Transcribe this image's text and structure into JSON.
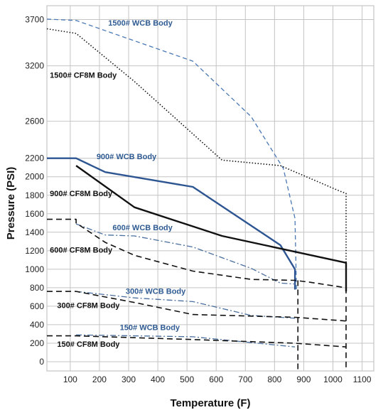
{
  "chart_data": {
    "type": "line",
    "title": "",
    "xlabel": "Temperature (F)",
    "ylabel": "Pressure (PSI)",
    "xlim": [
      20,
      1140
    ],
    "ylim": [
      -100,
      3850
    ],
    "grid": true,
    "x_ticks": [
      100,
      200,
      300,
      400,
      500,
      600,
      700,
      800,
      900,
      1000,
      1100
    ],
    "y_ticks": [
      0,
      200,
      400,
      600,
      800,
      1000,
      1200,
      1400,
      1600,
      1800,
      2000,
      2200,
      2600,
      3200,
      3700
    ],
    "series": [
      {
        "name": "1500# WCB Body",
        "label_at": [
          230,
          3635
        ],
        "label_color": "#2f5b93",
        "color": "#4a78b5",
        "dash": "6,4",
        "width": 1.3,
        "points": [
          [
            20,
            3705
          ],
          [
            120,
            3690
          ],
          [
            520,
            3250
          ],
          [
            720,
            2650
          ],
          [
            830,
            2090
          ],
          [
            870,
            1550
          ],
          [
            875,
            760
          ]
        ]
      },
      {
        "name": "1500# CF8M Body",
        "label_at": [
          30,
          3070
        ],
        "label_color": "#111111",
        "color": "#111111",
        "dash": "1.5,2.5",
        "width": 1.6,
        "points": [
          [
            20,
            3600
          ],
          [
            120,
            3550
          ],
          [
            320,
            3030
          ],
          [
            620,
            2180
          ],
          [
            820,
            2120
          ],
          [
            1020,
            1850
          ],
          [
            1045,
            1820
          ],
          [
            1045,
            760
          ]
        ]
      },
      {
        "name": "900# WCB Body",
        "label_at": [
          190,
          2190
        ],
        "label_color": "#2f5b93",
        "color": "#2d5592",
        "dash": "",
        "width": 2.4,
        "points": [
          [
            20,
            2200
          ],
          [
            120,
            2200
          ],
          [
            220,
            2050
          ],
          [
            520,
            1890
          ],
          [
            820,
            1260
          ],
          [
            870,
            1000
          ],
          [
            870,
            780
          ]
        ]
      },
      {
        "name": "900# CF8M Body",
        "label_at": [
          30,
          1790
        ],
        "label_color": "#111111",
        "color": "#111111",
        "dash": "",
        "width": 2.4,
        "points": [
          [
            120,
            2120
          ],
          [
            320,
            1670
          ],
          [
            620,
            1360
          ],
          [
            1045,
            1070
          ],
          [
            1045,
            760
          ]
        ]
      },
      {
        "name": "600# WCB Body",
        "label_at": [
          245,
          1420
        ],
        "label_color": "#2f5b93",
        "color": "#4a6f9e",
        "dash": "8,3,2,3",
        "width": 1.3,
        "points": [
          [
            120,
            1490
          ],
          [
            220,
            1370
          ],
          [
            320,
            1360
          ],
          [
            520,
            1240
          ],
          [
            720,
            1010
          ],
          [
            820,
            850
          ],
          [
            870,
            840
          ]
        ]
      },
      {
        "name": "600# CF8M Body",
        "label_at": [
          30,
          1180
        ],
        "label_color": "#111111",
        "color": "#111111",
        "dash": "8,5",
        "width": 1.6,
        "points": [
          [
            20,
            1540
          ],
          [
            120,
            1540
          ],
          [
            120,
            1500
          ],
          [
            220,
            1290
          ],
          [
            320,
            1150
          ],
          [
            520,
            980
          ],
          [
            720,
            890
          ],
          [
            870,
            880
          ],
          [
            920,
            860
          ],
          [
            1045,
            800
          ]
        ]
      },
      {
        "name": "300# WCB Body",
        "label_at": [
          290,
          735
        ],
        "label_color": "#2f5b93",
        "color": "#4a6f9e",
        "dash": "8,3,2,3",
        "width": 1.3,
        "points": [
          [
            120,
            760
          ],
          [
            320,
            690
          ],
          [
            520,
            650
          ],
          [
            720,
            500
          ],
          [
            870,
            470
          ]
        ]
      },
      {
        "name": "300# CF8M Body",
        "label_at": [
          55,
          580
        ],
        "label_color": "#111111",
        "color": "#111111",
        "dash": "8,5",
        "width": 1.6,
        "points": [
          [
            20,
            760
          ],
          [
            120,
            760
          ],
          [
            320,
            640
          ],
          [
            520,
            510
          ],
          [
            870,
            480
          ],
          [
            1045,
            440
          ]
        ]
      },
      {
        "name": "150# WCB Body",
        "label_at": [
          270,
          340
        ],
        "label_color": "#2f5b93",
        "color": "#4a6f9e",
        "dash": "8,3,2,3",
        "width": 1.3,
        "points": [
          [
            120,
            290
          ],
          [
            520,
            270
          ],
          [
            870,
            160
          ]
        ]
      },
      {
        "name": "150# CF8M Body",
        "label_at": [
          55,
          160
        ],
        "label_color": "#111111",
        "color": "#111111",
        "dash": "8,5",
        "width": 1.6,
        "points": [
          [
            20,
            280
          ],
          [
            120,
            280
          ],
          [
            320,
            260
          ],
          [
            520,
            240
          ],
          [
            870,
            200
          ],
          [
            1045,
            160
          ]
        ]
      }
    ],
    "vertical_drops": [
      {
        "x": 880,
        "y_from": 880,
        "y_to": -100,
        "color": "#111111",
        "dash": "8,5",
        "width": 1.6
      },
      {
        "x": 1045,
        "y_from": 800,
        "y_to": -100,
        "color": "#111111",
        "dash": "8,5",
        "width": 1.6
      }
    ]
  }
}
